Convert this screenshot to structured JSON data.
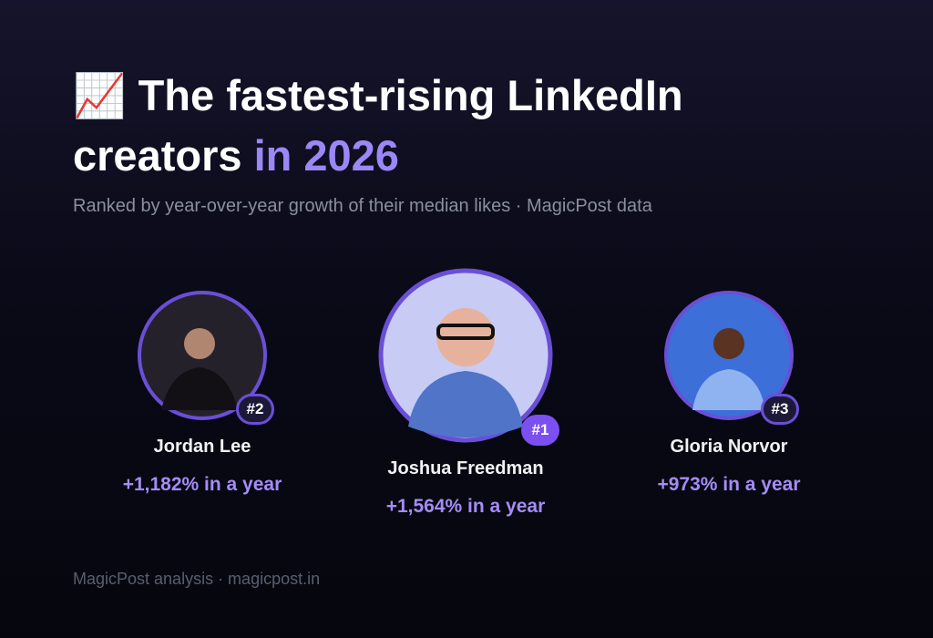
{
  "header": {
    "title": "📈 The fastest-rising LinkedIn creators",
    "title_highlight": "in 2026",
    "subtitle": "Ranked by year-over-year growth of their median likes · MagicPost data"
  },
  "creators": [
    {
      "rank": "#2",
      "name": "Jordan Lee",
      "growth": "+1,182% in a year"
    },
    {
      "rank": "#1",
      "name": "Joshua Freedman",
      "growth": "+1,564% in a year"
    },
    {
      "rank": "#3",
      "name": "Gloria Norvor",
      "growth": "+973% in a year"
    }
  ],
  "footer": "MagicPost analysis · magicpost.in"
}
